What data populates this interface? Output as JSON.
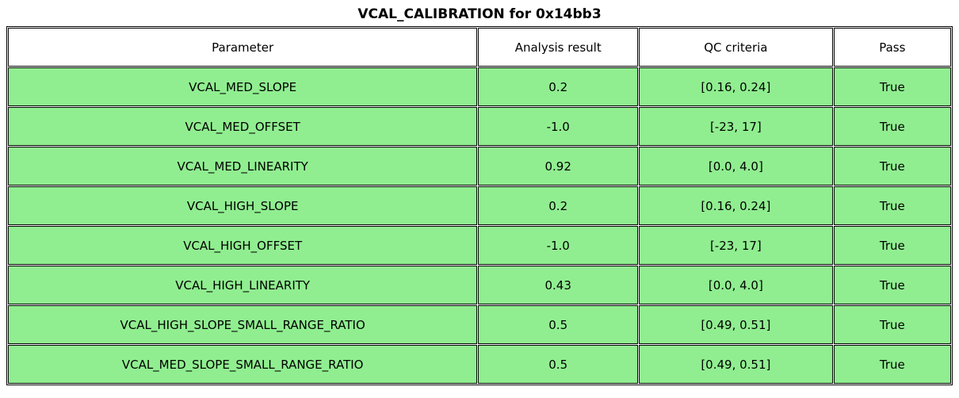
{
  "title": "VCAL_CALIBRATION for 0x14bb3",
  "colors": {
    "row_bg": "#90ee90",
    "header_bg": "#ffffff",
    "border": "#000000"
  },
  "table": {
    "columns": [
      "Parameter",
      "Analysis result",
      "QC criteria",
      "Pass"
    ],
    "rows": [
      {
        "param": "VCAL_MED_SLOPE",
        "result": "0.2",
        "qc": "[0.16, 0.24]",
        "pass": "True"
      },
      {
        "param": "VCAL_MED_OFFSET",
        "result": "-1.0",
        "qc": "[-23, 17]",
        "pass": "True"
      },
      {
        "param": "VCAL_MED_LINEARITY",
        "result": "0.92",
        "qc": "[0.0, 4.0]",
        "pass": "True"
      },
      {
        "param": "VCAL_HIGH_SLOPE",
        "result": "0.2",
        "qc": "[0.16, 0.24]",
        "pass": "True"
      },
      {
        "param": "VCAL_HIGH_OFFSET",
        "result": "-1.0",
        "qc": "[-23, 17]",
        "pass": "True"
      },
      {
        "param": "VCAL_HIGH_LINEARITY",
        "result": "0.43",
        "qc": "[0.0, 4.0]",
        "pass": "True"
      },
      {
        "param": "VCAL_HIGH_SLOPE_SMALL_RANGE_RATIO",
        "result": "0.5",
        "qc": "[0.49, 0.51]",
        "pass": "True"
      },
      {
        "param": "VCAL_MED_SLOPE_SMALL_RANGE_RATIO",
        "result": "0.5",
        "qc": "[0.49, 0.51]",
        "pass": "True"
      }
    ]
  }
}
